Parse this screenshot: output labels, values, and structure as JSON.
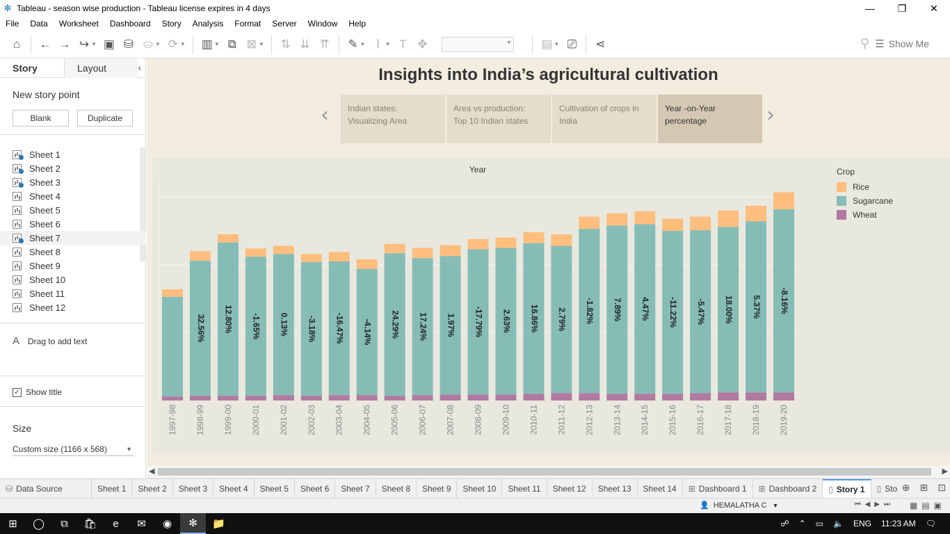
{
  "window": {
    "title": "Tableau - season wise production - Tableau license expires in 4 days"
  },
  "menu": [
    "File",
    "Data",
    "Worksheet",
    "Dashboard",
    "Story",
    "Analysis",
    "Format",
    "Server",
    "Window",
    "Help"
  ],
  "toolbar": {
    "show_me_label": "Show Me"
  },
  "sidebar": {
    "tab_story": "Story",
    "tab_layout": "Layout",
    "new_story_point": "New story point",
    "blank_label": "Blank",
    "duplicate_label": "Duplicate",
    "sheets": [
      "Sheet 1",
      "Sheet 2",
      "Sheet 3",
      "Sheet 4",
      "Sheet 5",
      "Sheet 6",
      "Sheet 7",
      "Sheet 8",
      "Sheet 9",
      "Sheet 10",
      "Sheet 11",
      "Sheet 12"
    ],
    "drag_text": "Drag to add text",
    "show_title": "Show title",
    "size_label": "Size",
    "size_value": "Custom size (1166 x 568)"
  },
  "story": {
    "title": "Insights into India’s agricultural cultivation",
    "points": [
      {
        "line1": "Indian states:",
        "line2": "Visualizing Area"
      },
      {
        "line1": "Area vs production:",
        "line2": "Top 10 Indian states"
      },
      {
        "line1": "Cultivation of crops in",
        "line2": "India"
      },
      {
        "line1": "Year -on-Year",
        "line2": "percentage"
      }
    ]
  },
  "chart_data": {
    "type": "bar",
    "stacked": true,
    "xlabel": "Year",
    "categories": [
      "1997-98",
      "1998-99",
      "1999-00",
      "2000-01",
      "2001-02",
      "2002-03",
      "2003-04",
      "2004-05",
      "2005-06",
      "2006-07",
      "2007-08",
      "2008-09",
      "2009-10",
      "2010-11",
      "2011-12",
      "2012-13",
      "2013-14",
      "2014-15",
      "2015-16",
      "2016-17",
      "2017-18",
      "2018-19",
      "2019-20"
    ],
    "series": [
      {
        "name": "Wheat",
        "color": "#b07aa1",
        "values": [
          6,
          7,
          7,
          7,
          8,
          7,
          8,
          8,
          7,
          8,
          9,
          9,
          9,
          10,
          11,
          11,
          10,
          10,
          10,
          11,
          12,
          12,
          12
        ]
      },
      {
        "name": "Sugarcane",
        "color": "#86bcb6",
        "values": [
          147,
          199,
          226,
          205,
          208,
          197,
          197,
          186,
          210,
          202,
          204,
          214,
          216,
          222,
          217,
          242,
          248,
          250,
          240,
          240,
          244,
          252,
          270
        ]
      },
      {
        "name": "Rice",
        "color": "#ffbe7d",
        "values": [
          11,
          14,
          12,
          12,
          12,
          12,
          14,
          14,
          14,
          15,
          16,
          15,
          15,
          16,
          17,
          18,
          18,
          19,
          18,
          20,
          24,
          23,
          25
        ]
      }
    ],
    "labels": [
      "",
      "32.56%",
      "12.80%",
      "-1.65%",
      "0.13%",
      "-3.18%",
      "-16.47%",
      "-4.14%",
      "24.29%",
      "17.24%",
      "1.97%",
      "-17.79%",
      "2.63%",
      "16.86%",
      "2.79%",
      "-1.82%",
      "7.89%",
      "4.47%",
      "-11.22%",
      "-5.47%",
      "18.00%",
      "5.37%",
      "-8.16%"
    ],
    "legend": {
      "title": "Crop",
      "placement": "right",
      "items": [
        "Rice",
        "Sugarcane",
        "Wheat"
      ]
    },
    "grid": true
  },
  "bottom_tabs": {
    "data_source": "Data Source",
    "sheets": [
      "Sheet 1",
      "Sheet 2",
      "Sheet 3",
      "Sheet 4",
      "Sheet 5",
      "Sheet 6",
      "Sheet 7",
      "Sheet 8",
      "Sheet 9",
      "Sheet 10",
      "Sheet 11",
      "Sheet 12",
      "Sheet 13",
      "Sheet 14"
    ],
    "dashboards": [
      "Dashboard 1",
      "Dashboard 2"
    ],
    "story_active": "Story 1",
    "story_next": "Sto"
  },
  "status": {
    "user": "HEMALATHA C"
  },
  "taskbar": {
    "lang": "ENG",
    "time": "11:23 AM"
  },
  "colors": {
    "rice": "#ffbe7d",
    "sugarcane": "#86bcb6",
    "wheat": "#b07aa1",
    "story_bg": "#f3ede0",
    "viz_bg": "#e8e8df"
  }
}
